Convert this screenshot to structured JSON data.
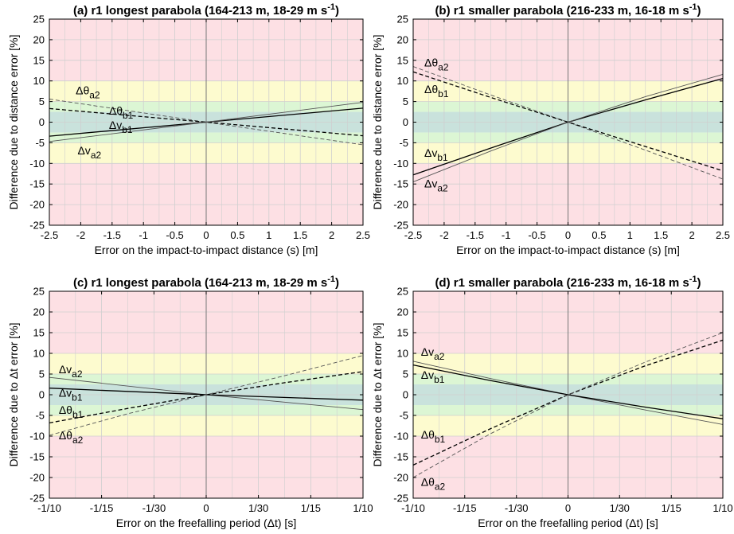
{
  "colors": {
    "band_red": "#fde0e4",
    "band_yellow": "#fdfbcf",
    "band_green": "#dcf6d4",
    "band_teal": "#c9e2dc",
    "grid": "#cfcfcf",
    "line": "#000000",
    "line_light": "#555555"
  },
  "bands": [
    {
      "from": -25,
      "to": -10,
      "color": "red"
    },
    {
      "from": -10,
      "to": -5,
      "color": "yellow"
    },
    {
      "from": -5,
      "to": -2.5,
      "color": "green"
    },
    {
      "from": -2.5,
      "to": 2.5,
      "color": "teal"
    },
    {
      "from": 2.5,
      "to": 5,
      "color": "green"
    },
    {
      "from": 5,
      "to": 10,
      "color": "yellow"
    },
    {
      "from": 10,
      "to": 25,
      "color": "red"
    }
  ],
  "chart_data": [
    {
      "type": "line",
      "title": "(a) r1 longest parabola (164-213 m, 18-29 m s",
      "title_sup": "-1",
      "title_end": ")",
      "xlabel": "Error on the impact-to-impact distance (s) [m]",
      "ylabel": "Difference due to distance error [%]",
      "xlim": [
        -2.5,
        2.5
      ],
      "ylim": [
        -25,
        25
      ],
      "xticks": [
        -2.5,
        -2,
        -1.5,
        -1,
        -0.5,
        0,
        0.5,
        1,
        1.5,
        2,
        2.5
      ],
      "xticklabels": [
        "-2.5",
        "-2",
        "-1.5",
        "-1",
        "-0.5",
        "0",
        "0.5",
        "1",
        "1.5",
        "2",
        "2.5"
      ],
      "yticks": [
        -25,
        -20,
        -15,
        -10,
        -5,
        0,
        5,
        10,
        15,
        20,
        25
      ],
      "grid": true,
      "series": [
        {
          "name": "Δθ",
          "sub": "a2",
          "style": "dashed-thin",
          "x": [
            -2.5,
            0,
            2.5
          ],
          "y": [
            5.6,
            0,
            -5.5
          ]
        },
        {
          "name": "Δθ",
          "sub": "b1",
          "style": "dashed",
          "x": [
            -2.5,
            0,
            2.5
          ],
          "y": [
            3.3,
            0,
            -3.3
          ]
        },
        {
          "name": "Δv",
          "sub": "b1",
          "style": "solid",
          "x": [
            -2.5,
            0,
            2.5
          ],
          "y": [
            -3.4,
            0,
            3.4
          ]
        },
        {
          "name": "Δv",
          "sub": "a2",
          "style": "solid-thin",
          "x": [
            -2.5,
            0,
            2.5
          ],
          "y": [
            -4.7,
            0,
            4.8
          ]
        }
      ],
      "labels": [
        {
          "text": "Δθ",
          "sub": "a2",
          "x": -2.08,
          "y": 6.8
        },
        {
          "text": "Δθ",
          "sub": "b1",
          "x": -1.55,
          "y": 1.8
        },
        {
          "text": "Δv",
          "sub": "b1",
          "x": -1.55,
          "y": -1.6
        },
        {
          "text": "Δv",
          "sub": "a2",
          "x": -2.05,
          "y": -7.8
        }
      ]
    },
    {
      "type": "line",
      "title": "(b) r1 smaller parabola (216-233 m, 16-18 m s",
      "title_sup": "-1",
      "title_end": ")",
      "xlabel": "Error on the impact-to-impact distance (s) [m]",
      "ylabel": "Difference due to distance error [%]",
      "xlim": [
        -2.5,
        2.5
      ],
      "ylim": [
        -25,
        25
      ],
      "xticks": [
        -2.5,
        -2,
        -1.5,
        -1,
        -0.5,
        0,
        0.5,
        1,
        1.5,
        2,
        2.5
      ],
      "xticklabels": [
        "-2.5",
        "-2",
        "-1.5",
        "-1",
        "-0.5",
        "0",
        "0.5",
        "1",
        "1.5",
        "2",
        "2.5"
      ],
      "yticks": [
        -25,
        -20,
        -15,
        -10,
        -5,
        0,
        5,
        10,
        15,
        20,
        25
      ],
      "grid": true,
      "series": [
        {
          "name": "Δθ",
          "sub": "a2",
          "style": "dashed-thin",
          "x": [
            -2.5,
            -1.25,
            0,
            1.25,
            2.5
          ],
          "y": [
            13.5,
            6.6,
            0,
            -6.8,
            -13.8
          ]
        },
        {
          "name": "Δθ",
          "sub": "b1",
          "style": "dashed",
          "x": [
            -2.5,
            -1.25,
            0,
            1.25,
            2.5
          ],
          "y": [
            12.2,
            6.0,
            0,
            -5.9,
            -11.8
          ]
        },
        {
          "name": "Δv",
          "sub": "b1",
          "style": "solid",
          "x": [
            -2.5,
            -1.25,
            0,
            1.25,
            2.5
          ],
          "y": [
            -12.8,
            -6.3,
            0,
            5.4,
            10.6
          ]
        },
        {
          "name": "Δv",
          "sub": "a2",
          "style": "solid-thin",
          "x": [
            -2.5,
            -1.25,
            0,
            1.25,
            2.5
          ],
          "y": [
            -14.5,
            -7.0,
            0,
            6.2,
            11.6
          ]
        }
      ],
      "labels": [
        {
          "text": "Δθ",
          "sub": "a2",
          "x": -2.32,
          "y": 13.5
        },
        {
          "text": "Δθ",
          "sub": "b1",
          "x": -2.32,
          "y": 7.0
        },
        {
          "text": "Δv",
          "sub": "b1",
          "x": -2.32,
          "y": -8.4
        },
        {
          "text": "Δv",
          "sub": "a2",
          "x": -2.32,
          "y": -15.8
        }
      ]
    },
    {
      "type": "line",
      "title": "(c) r1 longest parabola (164-213 m, 18-29 m s",
      "title_sup": "-1",
      "title_end": ")",
      "xlabel": "Error on the freefalling period (Δt) [s]",
      "ylabel": "Difference due to Δt error [%]",
      "xlim": [
        -0.1,
        0.1
      ],
      "ylim": [
        -25,
        25
      ],
      "xticks": [
        -0.1,
        -0.0667,
        -0.0333,
        0,
        0.0333,
        0.0667,
        0.1
      ],
      "xticklabels": [
        "-1/10",
        "-1/15",
        "-1/30",
        "0",
        "1/30",
        "1/15",
        "1/10"
      ],
      "yticks": [
        -25,
        -20,
        -15,
        -10,
        -5,
        0,
        5,
        10,
        15,
        20,
        25
      ],
      "grid": true,
      "series": [
        {
          "name": "Δv",
          "sub": "a2",
          "style": "solid-thin",
          "x": [
            -0.1,
            0,
            0.1
          ],
          "y": [
            4.2,
            0,
            -3.6
          ]
        },
        {
          "name": "Δv",
          "sub": "b1",
          "style": "solid",
          "x": [
            -0.1,
            0,
            0.1
          ],
          "y": [
            1.6,
            0,
            -1.3
          ]
        },
        {
          "name": "Δθ",
          "sub": "b1",
          "style": "dashed",
          "x": [
            -0.1,
            -0.05,
            0,
            0.05,
            0.1
          ],
          "y": [
            -6.8,
            -3.3,
            0,
            2.9,
            5.6
          ]
        },
        {
          "name": "Δθ",
          "sub": "a2",
          "style": "dashed-thin",
          "x": [
            -0.1,
            -0.05,
            0,
            0.05,
            0.1
          ],
          "y": [
            -9.8,
            -4.6,
            0,
            4.6,
            9.5
          ]
        }
      ],
      "labels": [
        {
          "text": "Δv",
          "sub": "a2",
          "x": -0.094,
          "y": 5.2
        },
        {
          "text": "Δv",
          "sub": "b1",
          "x": -0.094,
          "y": -0.5
        },
        {
          "text": "Δθ",
          "sub": "b1",
          "x": -0.094,
          "y": -4.6
        },
        {
          "text": "Δθ",
          "sub": "a2",
          "x": -0.094,
          "y": -10.8
        }
      ]
    },
    {
      "type": "line",
      "title": "(d) r1 smaller parabola (216-233 m, 16-18 m s",
      "title_sup": "-1",
      "title_end": ")",
      "xlabel": "Error on the freefalling period (Δt) [s]",
      "ylabel": "Difference due to Δt error [%]",
      "xlim": [
        -0.1,
        0.1
      ],
      "ylim": [
        -25,
        25
      ],
      "xticks": [
        -0.1,
        -0.0667,
        -0.0333,
        0,
        0.0333,
        0.0667,
        0.1
      ],
      "xticklabels": [
        "-1/10",
        "-1/15",
        "-1/30",
        "0",
        "1/30",
        "1/15",
        "1/10"
      ],
      "yticks": [
        -25,
        -20,
        -15,
        -10,
        -5,
        0,
        5,
        10,
        15,
        20,
        25
      ],
      "grid": true,
      "series": [
        {
          "name": "Δv",
          "sub": "a2",
          "style": "solid-thin",
          "x": [
            -0.1,
            -0.05,
            0,
            0.05,
            0.1
          ],
          "y": [
            8.1,
            3.9,
            0,
            -3.7,
            -7.2
          ]
        },
        {
          "name": "Δv",
          "sub": "b1",
          "style": "solid",
          "x": [
            -0.1,
            -0.05,
            0,
            0.05,
            0.1
          ],
          "y": [
            7.2,
            3.4,
            0,
            -3.0,
            -5.8
          ]
        },
        {
          "name": "Δθ",
          "sub": "b1",
          "style": "dashed",
          "x": [
            -0.1,
            -0.05,
            0,
            0.05,
            0.1
          ],
          "y": [
            -17.0,
            -8.2,
            0,
            7.0,
            13.2
          ]
        },
        {
          "name": "Δθ",
          "sub": "a2",
          "style": "dashed-thin",
          "x": [
            -0.1,
            -0.05,
            0,
            0.05,
            0.1
          ],
          "y": [
            -20.0,
            -9.4,
            0,
            7.9,
            15.0
          ]
        }
      ],
      "labels": [
        {
          "text": "Δv",
          "sub": "a2",
          "x": -0.095,
          "y": 9.4
        },
        {
          "text": "Δv",
          "sub": "b1",
          "x": -0.095,
          "y": 3.8
        },
        {
          "text": "Δθ",
          "sub": "b1",
          "x": -0.095,
          "y": -10.6
        },
        {
          "text": "Δθ",
          "sub": "a2",
          "x": -0.095,
          "y": -22.0
        }
      ]
    }
  ]
}
